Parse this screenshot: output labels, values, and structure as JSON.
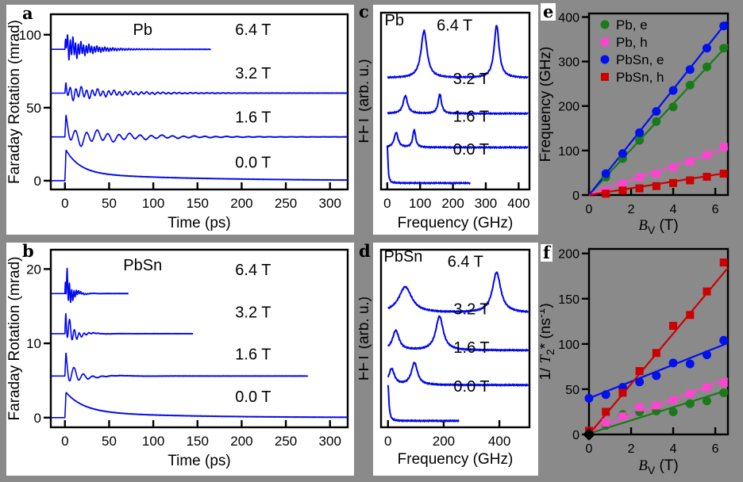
{
  "figure": {
    "background": "#8a8a8a",
    "panel_background": "#ffffff",
    "frame_color": "#000000",
    "trace_color": "#0008ee"
  },
  "chart_data": [
    {
      "id": "a",
      "type": "line",
      "letter": "a",
      "sample": "Pb",
      "sample_xy": [
        88,
        100
      ],
      "xlabel": "Time (ps)",
      "ylabel": "Faraday Rotation (mrad)",
      "xlim": [
        -16,
        320
      ],
      "ylim": [
        -6,
        114
      ],
      "xticks": [
        0,
        50,
        100,
        150,
        200,
        250,
        300
      ],
      "yticks": [
        0,
        50,
        100
      ],
      "traces": [
        {
          "field": "0.0 T",
          "label_xy": [
            213,
            9
          ],
          "offset": 0,
          "t_end": 320,
          "kind": "decay",
          "peak": 21,
          "tau": 16,
          "tail": 0.25,
          "tail_tau": 130
        },
        {
          "field": "1.6 T",
          "label_xy": [
            213,
            40
          ],
          "offset": 30,
          "t_end": 320,
          "kind": "osc",
          "spike": 8,
          "spike_tau": 4,
          "components": [
            {
              "f": 82,
              "amp": 6,
              "tau": 60
            },
            {
              "f": 27,
              "amp": 3,
              "tau": 50
            }
          ]
        },
        {
          "field": "3.2 T",
          "label_xy": [
            213,
            70
          ],
          "offset": 60,
          "t_end": 320,
          "kind": "osc",
          "spike": 4,
          "spike_tau": 3,
          "components": [
            {
              "f": 162,
              "amp": 4.5,
              "tau": 50
            },
            {
              "f": 55,
              "amp": 2,
              "tau": 45
            }
          ]
        },
        {
          "field": "6.4 T",
          "label_xy": [
            213,
            100
          ],
          "offset": 90,
          "t_end": 165,
          "kind": "osc",
          "spike": 8,
          "spike_tau": 3,
          "components": [
            {
              "f": 332,
              "amp": 8,
              "tau": 25
            },
            {
              "f": 110,
              "amp": 4,
              "tau": 18
            }
          ]
        }
      ]
    },
    {
      "id": "b",
      "type": "line",
      "letter": "b",
      "sample": "PbSn",
      "sample_xy": [
        88,
        19.8
      ],
      "xlabel": "Time (ps)",
      "ylabel": "Faraday Rotation (mrad)",
      "xlim": [
        -16,
        320
      ],
      "ylim": [
        -1.3,
        22.6
      ],
      "xticks": [
        0,
        50,
        100,
        150,
        200,
        250,
        300
      ],
      "yticks": [
        0,
        10,
        20
      ],
      "traces": [
        {
          "field": "0.0 T",
          "label_xy": [
            213,
            2.1
          ],
          "offset": 0,
          "t_end": 320,
          "kind": "decay",
          "peak": 3.4,
          "tau": 20,
          "tail": 0.25,
          "tail_tau": 110
        },
        {
          "field": "1.6 T",
          "label_xy": [
            213,
            7.8
          ],
          "offset": 5.6,
          "t_end": 275,
          "kind": "osc",
          "spike": 1.4,
          "spike_tau": 3,
          "components": [
            {
              "f": 95,
              "amp": 2.1,
              "tau": 12
            },
            {
              "f": 15,
              "amp": 0.5,
              "tau": 28
            }
          ]
        },
        {
          "field": "3.2 T",
          "label_xy": [
            213,
            13.5
          ],
          "offset": 11.3,
          "t_end": 145,
          "kind": "osc",
          "spike": 1.6,
          "spike_tau": 2.5,
          "components": [
            {
              "f": 185,
              "amp": 2.6,
              "tau": 8
            },
            {
              "f": 30,
              "amp": 0.8,
              "tau": 14
            }
          ]
        },
        {
          "field": "6.4 T",
          "label_xy": [
            213,
            19.2
          ],
          "offset": 16.7,
          "t_end": 72,
          "kind": "osc",
          "spike": 1.8,
          "spike_tau": 2.5,
          "components": [
            {
              "f": 390,
              "amp": 3.0,
              "tau": 6
            },
            {
              "f": 62,
              "amp": 1.0,
              "tau": 9
            }
          ]
        }
      ]
    },
    {
      "id": "c",
      "type": "fft",
      "letter": "c",
      "sample": "Pb",
      "sample_xy": [
        -8,
        4.42
      ],
      "xlabel": "Frequency (GHz)",
      "ylabel": "FFT (arb. u.)",
      "xlim": [
        -19,
        433
      ],
      "ylim": [
        -0.18,
        4.78
      ],
      "xticks": [
        0,
        100,
        200,
        300,
        400
      ],
      "yticks": [],
      "traces": [
        {
          "field": "0.0 T",
          "label_xy": [
            255,
            0.8
          ],
          "offset": 0,
          "f_end": 252,
          "peaks": [
            {
              "f0": 0,
              "h": 1.05,
              "w": 2.5
            }
          ]
        },
        {
          "field": "1.6 T",
          "label_xy": [
            255,
            1.72
          ],
          "offset": 1.0,
          "f_end": 430,
          "peaks": [
            {
              "f0": 27,
              "h": 0.42,
              "w": 7
            },
            {
              "f0": 82,
              "h": 0.5,
              "w": 5
            }
          ]
        },
        {
          "field": "3.2 T",
          "label_xy": [
            255,
            2.78
          ],
          "offset": 1.95,
          "f_end": 430,
          "peaks": [
            {
              "f0": 55,
              "h": 0.5,
              "w": 8
            },
            {
              "f0": 160,
              "h": 0.55,
              "w": 6
            }
          ]
        },
        {
          "field": "6.4 T",
          "label_xy": [
            205,
            4.28
          ],
          "offset": 2.95,
          "f_end": 430,
          "peaks": [
            {
              "f0": 112,
              "h": 1.32,
              "w": 11
            },
            {
              "f0": 333,
              "h": 1.48,
              "w": 9
            }
          ]
        }
      ]
    },
    {
      "id": "d",
      "type": "fft",
      "letter": "d",
      "sample": "PbSn",
      "sample_xy": [
        -15,
        4.45
      ],
      "xlabel": "Frequency (GHz)",
      "ylabel": "FFT (arb. u.)",
      "xlim": [
        -25,
        508
      ],
      "ylim": [
        -0.18,
        4.78
      ],
      "xticks": [
        0,
        200,
        400
      ],
      "yticks": [],
      "traces": [
        {
          "field": "0.0 T",
          "label_xy": [
            300,
            0.82
          ],
          "offset": 0,
          "f_end": 255,
          "peaks": [
            {
              "f0": 0,
              "h": 1.0,
              "w": 4
            }
          ]
        },
        {
          "field": "1.6 T",
          "label_xy": [
            300,
            1.9
          ],
          "offset": 1.0,
          "f_end": 505,
          "peaks": [
            {
              "f0": 13,
              "h": 0.45,
              "w": 12
            },
            {
              "f0": 95,
              "h": 0.62,
              "w": 13
            }
          ]
        },
        {
          "field": "3.2 T",
          "label_xy": [
            300,
            2.98
          ],
          "offset": 1.97,
          "f_end": 505,
          "peaks": [
            {
              "f0": 28,
              "h": 0.55,
              "w": 14
            },
            {
              "f0": 185,
              "h": 0.95,
              "w": 16
            }
          ]
        },
        {
          "field": "6.4 T",
          "label_xy": [
            278,
            4.3
          ],
          "offset": 3.02,
          "f_end": 505,
          "peaks": [
            {
              "f0": 62,
              "h": 0.72,
              "w": 28
            },
            {
              "f0": 390,
              "h": 1.12,
              "w": 18
            }
          ]
        }
      ]
    },
    {
      "id": "e",
      "type": "scatter",
      "letter": "e",
      "xlabel_parts": [
        {
          "t": "B",
          "italic": true
        },
        {
          "t": "V",
          "shift": "sub"
        },
        {
          "t": " (T)"
        }
      ],
      "ylabel": "Frequency (GHz)",
      "xlim": [
        0,
        6.6
      ],
      "ylim": [
        0,
        408
      ],
      "xticks": [
        0,
        2,
        4,
        6
      ],
      "yticks": [
        0,
        100,
        200,
        300,
        400
      ],
      "x": [
        0.8,
        1.6,
        2.4,
        3.2,
        4.0,
        4.8,
        5.6,
        6.4
      ],
      "series": [
        {
          "name": "Pb, e",
          "marker": "circle",
          "color": "#1a7a1a",
          "values": [
            40,
            82,
            123,
            165,
            198,
            247,
            288,
            330
          ],
          "fit": [
            0,
            0,
            6.6,
            338
          ]
        },
        {
          "name": "Pb, h",
          "marker": "square",
          "color": "#ff44d0",
          "values": [
            10,
            25,
            40,
            48,
            62,
            75,
            90,
            108
          ],
          "fit": [
            0,
            2,
            6.6,
            106
          ]
        },
        {
          "name": "PbSn, e",
          "marker": "circle",
          "color": "#0010ee",
          "values": [
            48,
            93,
            140,
            188,
            235,
            282,
            330,
            380
          ],
          "fit": [
            0,
            0,
            6.6,
            392
          ]
        },
        {
          "name": "PbSn, h",
          "marker": "square",
          "color": "#cc0000",
          "values": [
            3,
            10,
            15,
            20,
            27,
            33,
            41,
            48
          ],
          "fit": [
            0,
            0,
            6.6,
            50
          ]
        }
      ],
      "legend": {
        "items": [
          "Pb, e",
          "Pb, h",
          "PbSn, e",
          "PbSn, h"
        ]
      }
    },
    {
      "id": "f",
      "type": "scatter",
      "letter": "f",
      "xlabel_parts": [
        {
          "t": "B",
          "italic": true
        },
        {
          "t": "V",
          "shift": "sub"
        },
        {
          "t": " (T)"
        }
      ],
      "ylabel_parts": [
        {
          "t": "1/ "
        },
        {
          "t": "T",
          "italic": true
        },
        {
          "t": "2",
          "shift": "sub"
        },
        {
          "t": "* (ns"
        },
        {
          "t": "-1",
          "shift": "sup"
        },
        {
          "t": ")"
        }
      ],
      "xlim": [
        0,
        6.6
      ],
      "ylim": [
        0,
        205
      ],
      "xticks": [
        0,
        2,
        4,
        6
      ],
      "yticks": [
        0,
        50,
        100,
        150,
        200
      ],
      "x": [
        0,
        0.8,
        1.6,
        2.4,
        3.2,
        4.0,
        4.8,
        5.6,
        6.4
      ],
      "series": [
        {
          "name": "Pb, e",
          "marker": "circle",
          "color": "#1a7a1a",
          "values": [
            null,
            10,
            22,
            25,
            26,
            25,
            34,
            37,
            46
          ],
          "fit": [
            0,
            1,
            6.6,
            49
          ]
        },
        {
          "name": "Pb, h",
          "marker": "square",
          "color": "#ff44d0",
          "values": [
            3,
            13,
            20,
            30,
            32,
            38,
            45,
            52,
            57
          ],
          "fit": [
            0,
            3,
            6.6,
            62
          ]
        },
        {
          "name": "PbSn, e",
          "marker": "circle",
          "color": "#0010ee",
          "values": [
            40,
            44,
            52,
            58,
            65,
            79,
            78,
            88,
            104
          ],
          "fit": [
            0,
            40,
            6.6,
            101
          ]
        },
        {
          "name": "PbSn, h",
          "marker": "square",
          "color": "#cc0000",
          "values": [
            4,
            25,
            46,
            70,
            90,
            120,
            132,
            158,
            190
          ],
          "fit": [
            0,
            0,
            6.6,
            184
          ]
        }
      ],
      "extra_points": [
        {
          "marker": "diamond",
          "color": "#000000",
          "x": 0,
          "y": 0
        }
      ]
    }
  ]
}
